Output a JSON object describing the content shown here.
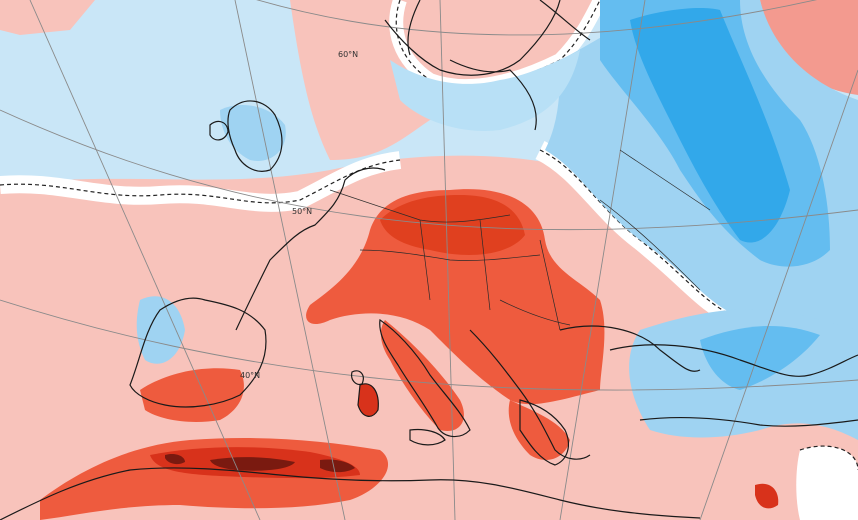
{
  "map": {
    "projection_labels": {
      "lat_60": "60°N",
      "lat_50": "50°N",
      "lat_40": "40°N"
    },
    "colors": {
      "sea_and_neutral": "#c9e6f7",
      "light_blue": "#9fd3f2",
      "mid_blue": "#64bdf0",
      "deep_blue": "#32a8ea",
      "white_band": "#ffffff",
      "light_red": "#f8c3bb",
      "pink": "#f39a8f",
      "red": "#ee5b3e",
      "deep_red": "#d8321b",
      "dark_red": "#7a1a10",
      "coastline": "#1a1a1a",
      "graticule": "#8a8a8a"
    }
  }
}
